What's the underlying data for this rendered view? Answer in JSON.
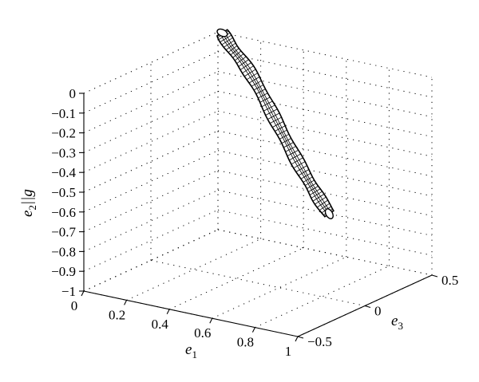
{
  "chart_data": {
    "type": "3d-line",
    "title": "",
    "axes": {
      "x": {
        "label_base": "e",
        "label_sub": "1",
        "ticks": [
          "0",
          "0.2",
          "0.4",
          "0.6",
          "0.8",
          "1"
        ],
        "range": [
          0,
          1
        ]
      },
      "y": {
        "label_base": "e",
        "label_sub": "3",
        "ticks": [
          "−0.5",
          "0",
          "0.5"
        ],
        "range": [
          -0.5,
          0.5
        ]
      },
      "z": {
        "label_base": "e",
        "label_sub": "2",
        "label_suffix": "||g",
        "ticks": [
          "0",
          "−0.1",
          "−0.2",
          "−0.3",
          "−0.4",
          "−0.5",
          "−0.6",
          "−0.7",
          "−0.8",
          "−0.9",
          "−1"
        ],
        "range": [
          -1,
          0
        ]
      }
    },
    "grid": "dotted",
    "series": [
      {
        "style": "mesh-tube",
        "points": [
          {
            "x": 0.02,
            "y": 0.5,
            "z": 0.0
          },
          {
            "x": 0.06,
            "y": 0.5,
            "z": -0.06
          },
          {
            "x": 0.12,
            "y": 0.5,
            "z": -0.13
          },
          {
            "x": 0.18,
            "y": 0.5,
            "z": -0.22
          },
          {
            "x": 0.24,
            "y": 0.5,
            "z": -0.33
          },
          {
            "x": 0.3,
            "y": 0.5,
            "z": -0.44
          },
          {
            "x": 0.36,
            "y": 0.5,
            "z": -0.55
          },
          {
            "x": 0.42,
            "y": 0.5,
            "z": -0.65
          },
          {
            "x": 0.47,
            "y": 0.5,
            "z": -0.73
          },
          {
            "x": 0.52,
            "y": 0.5,
            "z": -0.8
          }
        ]
      }
    ]
  }
}
